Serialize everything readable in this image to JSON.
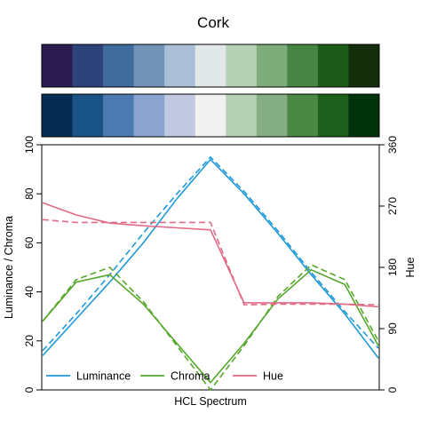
{
  "chart_data": {
    "type": "line",
    "title": "Cork",
    "xlabel": "HCL Spectrum",
    "ylabel_left": "Luminance / Chroma",
    "ylabel_right": "Hue",
    "ylim_left": [
      0,
      100
    ],
    "ylim_right": [
      0,
      360
    ],
    "yticks_left": [
      0,
      20,
      40,
      60,
      80,
      100
    ],
    "yticks_right": [
      0,
      90,
      180,
      270,
      360
    ],
    "x": [
      1,
      2,
      3,
      4,
      5,
      6,
      7,
      8,
      9,
      10,
      11
    ],
    "palettes": [
      {
        "name": "swatches-top",
        "colors": [
          "#2b1b4f",
          "#2e4379",
          "#3f6b9d",
          "#7194b8",
          "#abc0d6",
          "#e2e8ea",
          "#b6d1b6",
          "#7eac7a",
          "#468544",
          "#1c5b1a",
          "#142e0c"
        ]
      },
      {
        "name": "swatches-bottom",
        "colors": [
          "#062c54",
          "#1a5385",
          "#4b79b0",
          "#8aa4cf",
          "#c1cae2",
          "#f1f1f1",
          "#b7d1b5",
          "#86ae84",
          "#4b8844",
          "#1d5f1c",
          "#00330b"
        ]
      }
    ],
    "series": [
      {
        "name": "Luminance",
        "axis": "left",
        "style": "solid",
        "color": "#1f9ad8",
        "values": [
          14,
          29,
          44,
          60,
          78,
          94,
          80,
          64,
          47,
          31,
          13
        ]
      },
      {
        "name": "Luminance",
        "axis": "left",
        "style": "dashed",
        "color": "#1f9ad8",
        "values": [
          16,
          31,
          47,
          64,
          80,
          95,
          81,
          65,
          48,
          32,
          17
        ]
      },
      {
        "name": "Chroma",
        "axis": "left",
        "style": "solid",
        "color": "#55a82c",
        "values": [
          28,
          44,
          47,
          35,
          19,
          3,
          19,
          37,
          49,
          43,
          18
        ]
      },
      {
        "name": "Chroma",
        "axis": "left",
        "style": "dashed",
        "color": "#55a82c",
        "values": [
          28,
          45,
          50,
          36,
          18,
          0,
          18,
          38,
          51,
          45,
          20
        ]
      },
      {
        "name": "Hue",
        "axis": "right",
        "style": "solid",
        "color": "#e16a86",
        "values": [
          275,
          257,
          245,
          241,
          238,
          235,
          128,
          128,
          128,
          126,
          122
        ]
      },
      {
        "name": "Hue",
        "axis": "right",
        "style": "dashed",
        "color": "#e16a86",
        "values": [
          250,
          246,
          246,
          246,
          246,
          246,
          125,
          126,
          126,
          126,
          125
        ]
      }
    ],
    "legend": {
      "placement": "bottom-left",
      "items": [
        {
          "label": "Luminance",
          "color": "#1f9ad8"
        },
        {
          "label": "Chroma",
          "color": "#55a82c"
        },
        {
          "label": "Hue",
          "color": "#e16a86"
        }
      ]
    },
    "grid": false
  }
}
